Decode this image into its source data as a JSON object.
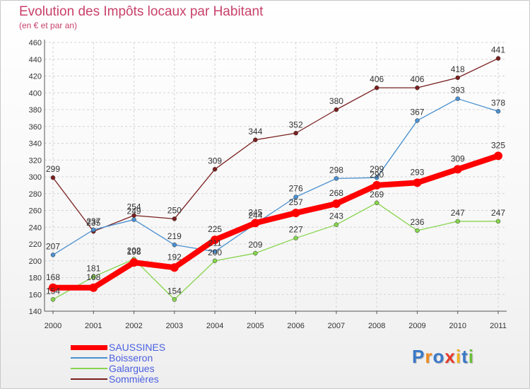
{
  "chart_data": {
    "type": "line",
    "title": "Evolution des Impôts locaux par Habitant",
    "subtitle": "(en € et par an)",
    "xlabel": "",
    "ylabel": "",
    "ylim": [
      140,
      460
    ],
    "ytick_step": 20,
    "grid": true,
    "legend_position": "bottom-left",
    "categories": [
      "2000",
      "2001",
      "2002",
      "2003",
      "2004",
      "2005",
      "2006",
      "2007",
      "2008",
      "2009",
      "2010",
      "2011"
    ],
    "series": [
      {
        "name": "SAUSSINES",
        "color": "#ff0000",
        "values": [
          168,
          168,
          198,
          192,
          225,
          245,
          257,
          268,
          290,
          293,
          309,
          325
        ]
      },
      {
        "name": "Boisseron",
        "color": "#4a90d0",
        "values": [
          207,
          237,
          249,
          219,
          211,
          244,
          276,
          298,
          299,
          367,
          393,
          378
        ]
      },
      {
        "name": "Galargues",
        "color": "#86d44c",
        "values": [
          154,
          181,
          202,
          154,
          200,
          209,
          227,
          243,
          269,
          236,
          247,
          247
        ]
      },
      {
        "name": "Sommières",
        "color": "#7a1f1f",
        "values": [
          299,
          235,
          254,
          250,
          309,
          344,
          352,
          380,
          406,
          406,
          418,
          441
        ]
      }
    ]
  },
  "logo": {
    "text": "Proxiti",
    "letters": [
      "P",
      "r",
      "o",
      "x",
      "i",
      "t",
      "i"
    ],
    "colors": [
      "#3a78c8",
      "#f08a1c",
      "#3a78c8",
      "#e8392a",
      "#f0b020",
      "#3a78c8",
      "#6abf3a"
    ]
  }
}
